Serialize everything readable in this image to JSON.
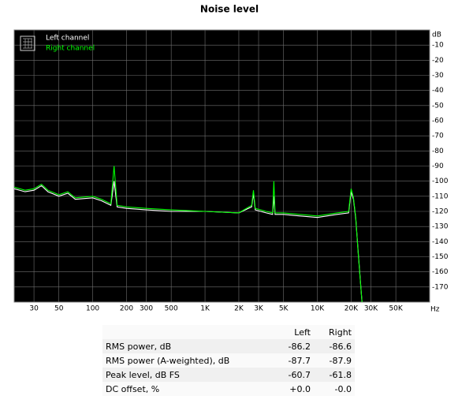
{
  "chart_data": {
    "type": "line",
    "title": "Noise level",
    "x_label": "Hz",
    "y_label": "dB",
    "log_x": true,
    "grid": true,
    "legend": "top-left",
    "xlim": [
      20,
      100000
    ],
    "ylim": [
      -180,
      0
    ],
    "xticks": [
      30,
      50,
      100,
      200,
      300,
      500,
      {
        "value": 1000,
        "label": "1K"
      },
      {
        "value": 2000,
        "label": "2K"
      },
      {
        "value": 3000,
        "label": "3K"
      },
      {
        "value": 5000,
        "label": "5K"
      },
      {
        "value": 10000,
        "label": "10K"
      },
      {
        "value": 20000,
        "label": "20K"
      },
      {
        "value": 30000,
        "label": "30K"
      },
      {
        "value": 50000,
        "label": "50K"
      }
    ],
    "yticks": [
      -10,
      -20,
      -30,
      -40,
      -50,
      -60,
      -70,
      -80,
      -90,
      -100,
      -110,
      -120,
      -130,
      -140,
      -150,
      -160,
      -170
    ],
    "x": [
      20,
      25,
      30,
      35,
      40,
      50,
      60,
      70,
      100,
      120,
      145,
      155,
      165,
      200,
      300,
      500,
      1000,
      2000,
      2600,
      2700,
      2800,
      3500,
      4000,
      4100,
      4200,
      5000,
      7000,
      10000,
      15000,
      19000,
      20000,
      21000,
      22000,
      23000,
      25000
    ],
    "series": [
      {
        "name": "Left channel",
        "color": "#ffffff",
        "values": [
          -105,
          -107,
          -106,
          -103,
          -107,
          -110,
          -108,
          -112,
          -111,
          -113,
          -116,
          -100,
          -117,
          -118,
          -119,
          -120,
          -120,
          -121,
          -117,
          -108,
          -119,
          -121,
          -122,
          -110,
          -122,
          -122,
          -123,
          -124,
          -122,
          -121,
          -107,
          -112,
          -125,
          -145,
          -180
        ]
      },
      {
        "name": "Right channel",
        "color": "#00ff00",
        "values": [
          -104,
          -106,
          -105,
          -102,
          -106,
          -109,
          -107,
          -111,
          -110,
          -112,
          -115,
          -90,
          -116,
          -117,
          -118,
          -119,
          -120,
          -121,
          -116,
          -106,
          -118,
          -120,
          -121,
          -100,
          -121,
          -121,
          -122,
          -123,
          -121,
          -120,
          -105,
          -111,
          -124,
          -146,
          -180
        ]
      }
    ]
  },
  "table": {
    "header": [
      "Left",
      "Right"
    ],
    "rows": [
      [
        "RMS power, dB",
        "-86.2",
        "-86.6"
      ],
      [
        "RMS power (A-weighted), dB",
        "-87.7",
        "-87.9"
      ],
      [
        "Peak level, dB FS",
        "-60.7",
        "-61.8"
      ],
      [
        "DC offset, %",
        "+0.0",
        "-0.0"
      ]
    ]
  }
}
